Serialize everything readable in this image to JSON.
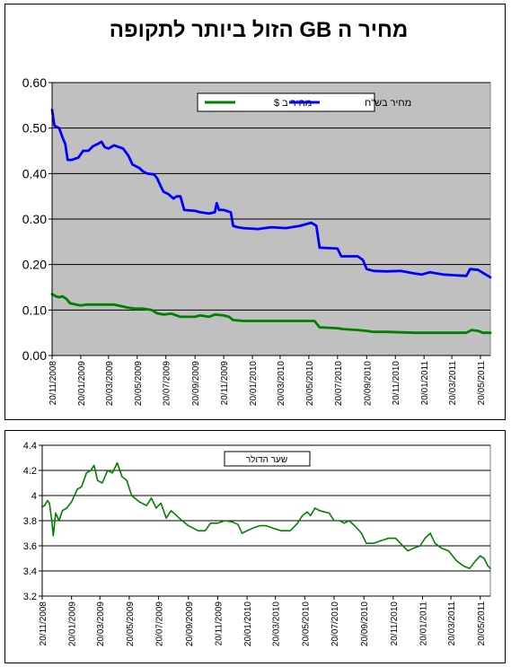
{
  "chart_data": [
    {
      "type": "line",
      "title": "מחיר ה GB הזול ביותר לתקופה",
      "ylim": [
        0,
        0.6
      ],
      "yticks": [
        "0.00",
        "0.10",
        "0.20",
        "0.30",
        "0.40",
        "0.50",
        "0.60"
      ],
      "x_tick_labels": [
        "20/11/2008",
        "20/01/2009",
        "20/03/2009",
        "20/05/2009",
        "20/07/2009",
        "20/09/2009",
        "20/11/2009",
        "20/01/2010",
        "20/03/2010",
        "20/05/2010",
        "20/07/2010",
        "20/09/2010",
        "20/11/2010",
        "20/01/2011",
        "20/03/2011",
        "20/05/2011"
      ],
      "x_range": [
        "2008-11-20",
        "2011-06-10"
      ],
      "grid": true,
      "plot_background": "#c0c0c0",
      "legend_position": "top-center",
      "series": [
        {
          "name": "מחיר ב $",
          "color": "#008000",
          "points": [
            [
              "2008-11-20",
              0.135
            ],
            [
              "2008-11-28",
              0.13
            ],
            [
              "2008-12-05",
              0.128
            ],
            [
              "2008-12-12",
              0.13
            ],
            [
              "2008-12-20",
              0.125
            ],
            [
              "2008-12-28",
              0.115
            ],
            [
              "2009-01-10",
              0.112
            ],
            [
              "2009-01-20",
              0.11
            ],
            [
              "2009-02-01",
              0.112
            ],
            [
              "2009-03-01",
              0.112
            ],
            [
              "2009-04-01",
              0.112
            ],
            [
              "2009-05-01",
              0.105
            ],
            [
              "2009-05-15",
              0.103
            ],
            [
              "2009-06-01",
              0.103
            ],
            [
              "2009-06-20",
              0.1
            ],
            [
              "2009-07-01",
              0.093
            ],
            [
              "2009-07-15",
              0.09
            ],
            [
              "2009-08-01",
              0.092
            ],
            [
              "2009-08-20",
              0.085
            ],
            [
              "2009-09-20",
              0.085
            ],
            [
              "2009-10-01",
              0.088
            ],
            [
              "2009-10-20",
              0.085
            ],
            [
              "2009-11-01",
              0.09
            ],
            [
              "2009-11-20",
              0.088
            ],
            [
              "2009-12-01",
              0.085
            ],
            [
              "2009-12-10",
              0.078
            ],
            [
              "2010-01-01",
              0.076
            ],
            [
              "2010-03-01",
              0.076
            ],
            [
              "2010-05-01",
              0.076
            ],
            [
              "2010-06-01",
              0.076
            ],
            [
              "2010-06-12",
              0.062
            ],
            [
              "2010-07-20",
              0.06
            ],
            [
              "2010-08-01",
              0.058
            ],
            [
              "2010-09-01",
              0.056
            ],
            [
              "2010-09-20",
              0.054
            ],
            [
              "2010-10-05",
              0.052
            ],
            [
              "2010-11-01",
              0.052
            ],
            [
              "2010-12-01",
              0.051
            ],
            [
              "2011-01-01",
              0.05
            ],
            [
              "2011-02-01",
              0.05
            ],
            [
              "2011-04-01",
              0.05
            ],
            [
              "2011-04-20",
              0.05
            ],
            [
              "2011-05-01",
              0.056
            ],
            [
              "2011-05-15",
              0.054
            ],
            [
              "2011-05-25",
              0.05
            ],
            [
              "2011-06-10",
              0.05
            ]
          ]
        },
        {
          "name": "מחיר בש\"ח",
          "color": "#0000ff",
          "points": [
            [
              "2008-11-20",
              0.54
            ],
            [
              "2008-11-25",
              0.505
            ],
            [
              "2008-12-05",
              0.5
            ],
            [
              "2008-12-12",
              0.48
            ],
            [
              "2008-12-18",
              0.465
            ],
            [
              "2008-12-23",
              0.43
            ],
            [
              "2009-01-01",
              0.43
            ],
            [
              "2009-01-15",
              0.435
            ],
            [
              "2009-01-25",
              0.45
            ],
            [
              "2009-02-05",
              0.45
            ],
            [
              "2009-02-15",
              0.46
            ],
            [
              "2009-02-25",
              0.465
            ],
            [
              "2009-03-05",
              0.47
            ],
            [
              "2009-03-12",
              0.458
            ],
            [
              "2009-03-20",
              0.455
            ],
            [
              "2009-04-01",
              0.462
            ],
            [
              "2009-04-20",
              0.455
            ],
            [
              "2009-05-01",
              0.44
            ],
            [
              "2009-05-10",
              0.42
            ],
            [
              "2009-05-25",
              0.412
            ],
            [
              "2009-06-01",
              0.405
            ],
            [
              "2009-06-10",
              0.4
            ],
            [
              "2009-06-25",
              0.398
            ],
            [
              "2009-07-01",
              0.39
            ],
            [
              "2009-07-10",
              0.37
            ],
            [
              "2009-07-15",
              0.36
            ],
            [
              "2009-07-25",
              0.355
            ],
            [
              "2009-08-05",
              0.345
            ],
            [
              "2009-08-12",
              0.35
            ],
            [
              "2009-08-20",
              0.35
            ],
            [
              "2009-08-28",
              0.32
            ],
            [
              "2009-09-20",
              0.318
            ],
            [
              "2009-10-01",
              0.315
            ],
            [
              "2009-10-20",
              0.312
            ],
            [
              "2009-11-01",
              0.315
            ],
            [
              "2009-11-05",
              0.335
            ],
            [
              "2009-11-10",
              0.32
            ],
            [
              "2009-11-20",
              0.32
            ],
            [
              "2009-12-05",
              0.315
            ],
            [
              "2009-12-10",
              0.285
            ],
            [
              "2009-12-20",
              0.282
            ],
            [
              "2010-01-01",
              0.28
            ],
            [
              "2010-02-01",
              0.278
            ],
            [
              "2010-03-01",
              0.282
            ],
            [
              "2010-04-01",
              0.28
            ],
            [
              "2010-05-01",
              0.285
            ],
            [
              "2010-05-25",
              0.292
            ],
            [
              "2010-06-05",
              0.285
            ],
            [
              "2010-06-12",
              0.237
            ],
            [
              "2010-07-01",
              0.236
            ],
            [
              "2010-07-20",
              0.235
            ],
            [
              "2010-07-28",
              0.218
            ],
            [
              "2010-08-10",
              0.218
            ],
            [
              "2010-09-01",
              0.218
            ],
            [
              "2010-09-12",
              0.21
            ],
            [
              "2010-09-20",
              0.19
            ],
            [
              "2010-10-05",
              0.186
            ],
            [
              "2010-11-01",
              0.185
            ],
            [
              "2010-12-01",
              0.186
            ],
            [
              "2011-01-01",
              0.18
            ],
            [
              "2011-01-15",
              0.178
            ],
            [
              "2011-02-01",
              0.183
            ],
            [
              "2011-03-01",
              0.178
            ],
            [
              "2011-04-01",
              0.176
            ],
            [
              "2011-04-20",
              0.175
            ],
            [
              "2011-04-28",
              0.19
            ],
            [
              "2011-05-15",
              0.188
            ],
            [
              "2011-05-28",
              0.18
            ],
            [
              "2011-06-10",
              0.172
            ]
          ]
        }
      ]
    },
    {
      "type": "line",
      "title": "",
      "ylim": [
        3.2,
        4.4
      ],
      "yticks": [
        "3.2",
        "3.4",
        "3.6",
        "3.8",
        "4",
        "4.2",
        "4.4"
      ],
      "x_tick_labels": [
        "20/11/2008",
        "20/01/2009",
        "20/03/2009",
        "20/05/2009",
        "20/07/2009",
        "20/09/2009",
        "20/11/2009",
        "20/01/2010",
        "20/03/2010",
        "20/05/2010",
        "20/07/2010",
        "20/09/2010",
        "20/11/2010",
        "20/01/2011",
        "20/03/2011",
        "20/05/2011"
      ],
      "x_range": [
        "2008-11-20",
        "2011-06-10"
      ],
      "grid": true,
      "plot_background": "#ffffff",
      "legend_position": "top-center",
      "series": [
        {
          "name": "שער הדולר",
          "color": "#008000",
          "points": [
            [
              "2008-11-20",
              3.91
            ],
            [
              "2008-11-25",
              3.92
            ],
            [
              "2008-12-01",
              3.96
            ],
            [
              "2008-12-05",
              3.94
            ],
            [
              "2008-12-10",
              3.8
            ],
            [
              "2008-12-13",
              3.68
            ],
            [
              "2008-12-18",
              3.86
            ],
            [
              "2008-12-25",
              3.8
            ],
            [
              "2009-01-01",
              3.88
            ],
            [
              "2009-01-10",
              3.9
            ],
            [
              "2009-01-20",
              3.95
            ],
            [
              "2009-02-01",
              4.05
            ],
            [
              "2009-02-10",
              4.07
            ],
            [
              "2009-02-20",
              4.18
            ],
            [
              "2009-03-01",
              4.2
            ],
            [
              "2009-03-08",
              4.24
            ],
            [
              "2009-03-15",
              4.12
            ],
            [
              "2009-03-25",
              4.1
            ],
            [
              "2009-04-05",
              4.2
            ],
            [
              "2009-04-15",
              4.18
            ],
            [
              "2009-04-25",
              4.26
            ],
            [
              "2009-05-05",
              4.15
            ],
            [
              "2009-05-15",
              4.12
            ],
            [
              "2009-05-25",
              4.0
            ],
            [
              "2009-06-10",
              3.95
            ],
            [
              "2009-06-25",
              3.92
            ],
            [
              "2009-07-05",
              3.98
            ],
            [
              "2009-07-15",
              3.9
            ],
            [
              "2009-07-25",
              3.94
            ],
            [
              "2009-08-05",
              3.82
            ],
            [
              "2009-08-15",
              3.88
            ],
            [
              "2009-09-01",
              3.82
            ],
            [
              "2009-09-20",
              3.76
            ],
            [
              "2009-10-10",
              3.72
            ],
            [
              "2009-10-25",
              3.72
            ],
            [
              "2009-11-05",
              3.78
            ],
            [
              "2009-11-20",
              3.78
            ],
            [
              "2009-12-05",
              3.8
            ],
            [
              "2009-12-20",
              3.79
            ],
            [
              "2010-01-01",
              3.77
            ],
            [
              "2010-01-10",
              3.7
            ],
            [
              "2010-01-20",
              3.72
            ],
            [
              "2010-02-01",
              3.74
            ],
            [
              "2010-02-15",
              3.76
            ],
            [
              "2010-03-01",
              3.76
            ],
            [
              "2010-03-15",
              3.74
            ],
            [
              "2010-04-01",
              3.72
            ],
            [
              "2010-04-20",
              3.72
            ],
            [
              "2010-05-05",
              3.78
            ],
            [
              "2010-05-15",
              3.84
            ],
            [
              "2010-05-25",
              3.87
            ],
            [
              "2010-06-01",
              3.84
            ],
            [
              "2010-06-10",
              3.9
            ],
            [
              "2010-06-20",
              3.88
            ],
            [
              "2010-07-10",
              3.86
            ],
            [
              "2010-07-20",
              3.8
            ],
            [
              "2010-08-01",
              3.8
            ],
            [
              "2010-08-10",
              3.78
            ],
            [
              "2010-08-20",
              3.8
            ],
            [
              "2010-09-01",
              3.76
            ],
            [
              "2010-09-15",
              3.7
            ],
            [
              "2010-09-25",
              3.62
            ],
            [
              "2010-10-10",
              3.62
            ],
            [
              "2010-10-25",
              3.64
            ],
            [
              "2010-11-10",
              3.66
            ],
            [
              "2010-11-25",
              3.66
            ],
            [
              "2010-12-05",
              3.62
            ],
            [
              "2010-12-20",
              3.56
            ],
            [
              "2011-01-01",
              3.58
            ],
            [
              "2011-01-15",
              3.6
            ],
            [
              "2011-01-25",
              3.66
            ],
            [
              "2011-02-05",
              3.7
            ],
            [
              "2011-02-15",
              3.62
            ],
            [
              "2011-03-01",
              3.58
            ],
            [
              "2011-03-15",
              3.56
            ],
            [
              "2011-04-01",
              3.48
            ],
            [
              "2011-04-15",
              3.44
            ],
            [
              "2011-04-28",
              3.42
            ],
            [
              "2011-05-10",
              3.48
            ],
            [
              "2011-05-20",
              3.52
            ],
            [
              "2011-05-28",
              3.5
            ],
            [
              "2011-06-05",
              3.44
            ],
            [
              "2011-06-10",
              3.42
            ]
          ]
        }
      ]
    }
  ]
}
